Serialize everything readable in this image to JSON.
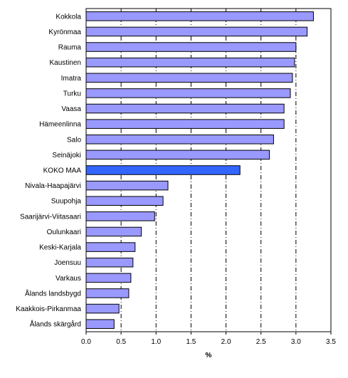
{
  "chart_data": {
    "type": "bar",
    "orientation": "horizontal",
    "categories": [
      "Kokkola",
      "Kyrönmaa",
      "Rauma",
      "Kaustinen",
      "Imatra",
      "Turku",
      "Vaasa",
      "Hämeenlinna",
      "Salo",
      "Seinäjoki",
      "KOKO MAA",
      "Nivala-Haapajärvi",
      "Suupohja",
      "Saarijärvi-Viitasaari",
      "Oulunkaari",
      "Keski-Karjala",
      "Joensuu",
      "Varkaus",
      "Ålands landsbygd",
      "Kaakkois-Pirkanmaa",
      "Ålands skärgård"
    ],
    "values": [
      3.25,
      3.16,
      3.0,
      2.98,
      2.95,
      2.92,
      2.83,
      2.83,
      2.68,
      2.62,
      2.2,
      1.17,
      1.1,
      0.98,
      0.79,
      0.7,
      0.67,
      0.64,
      0.61,
      0.47,
      0.4
    ],
    "highlight_category": "KOKO MAA",
    "title": "",
    "xlabel": "%",
    "ylabel": "",
    "xlim": [
      0,
      3.5
    ],
    "xticks": [
      "0.0",
      "0.5",
      "1.0",
      "1.5",
      "2.0",
      "2.5",
      "3.0",
      "3.5"
    ],
    "grid": "vertical dash-dot lines",
    "legend": "none",
    "colors": {
      "bar": "#9999ff",
      "highlight": "#3366ff",
      "bar_edge": "#000000",
      "grid": "#000000"
    }
  }
}
